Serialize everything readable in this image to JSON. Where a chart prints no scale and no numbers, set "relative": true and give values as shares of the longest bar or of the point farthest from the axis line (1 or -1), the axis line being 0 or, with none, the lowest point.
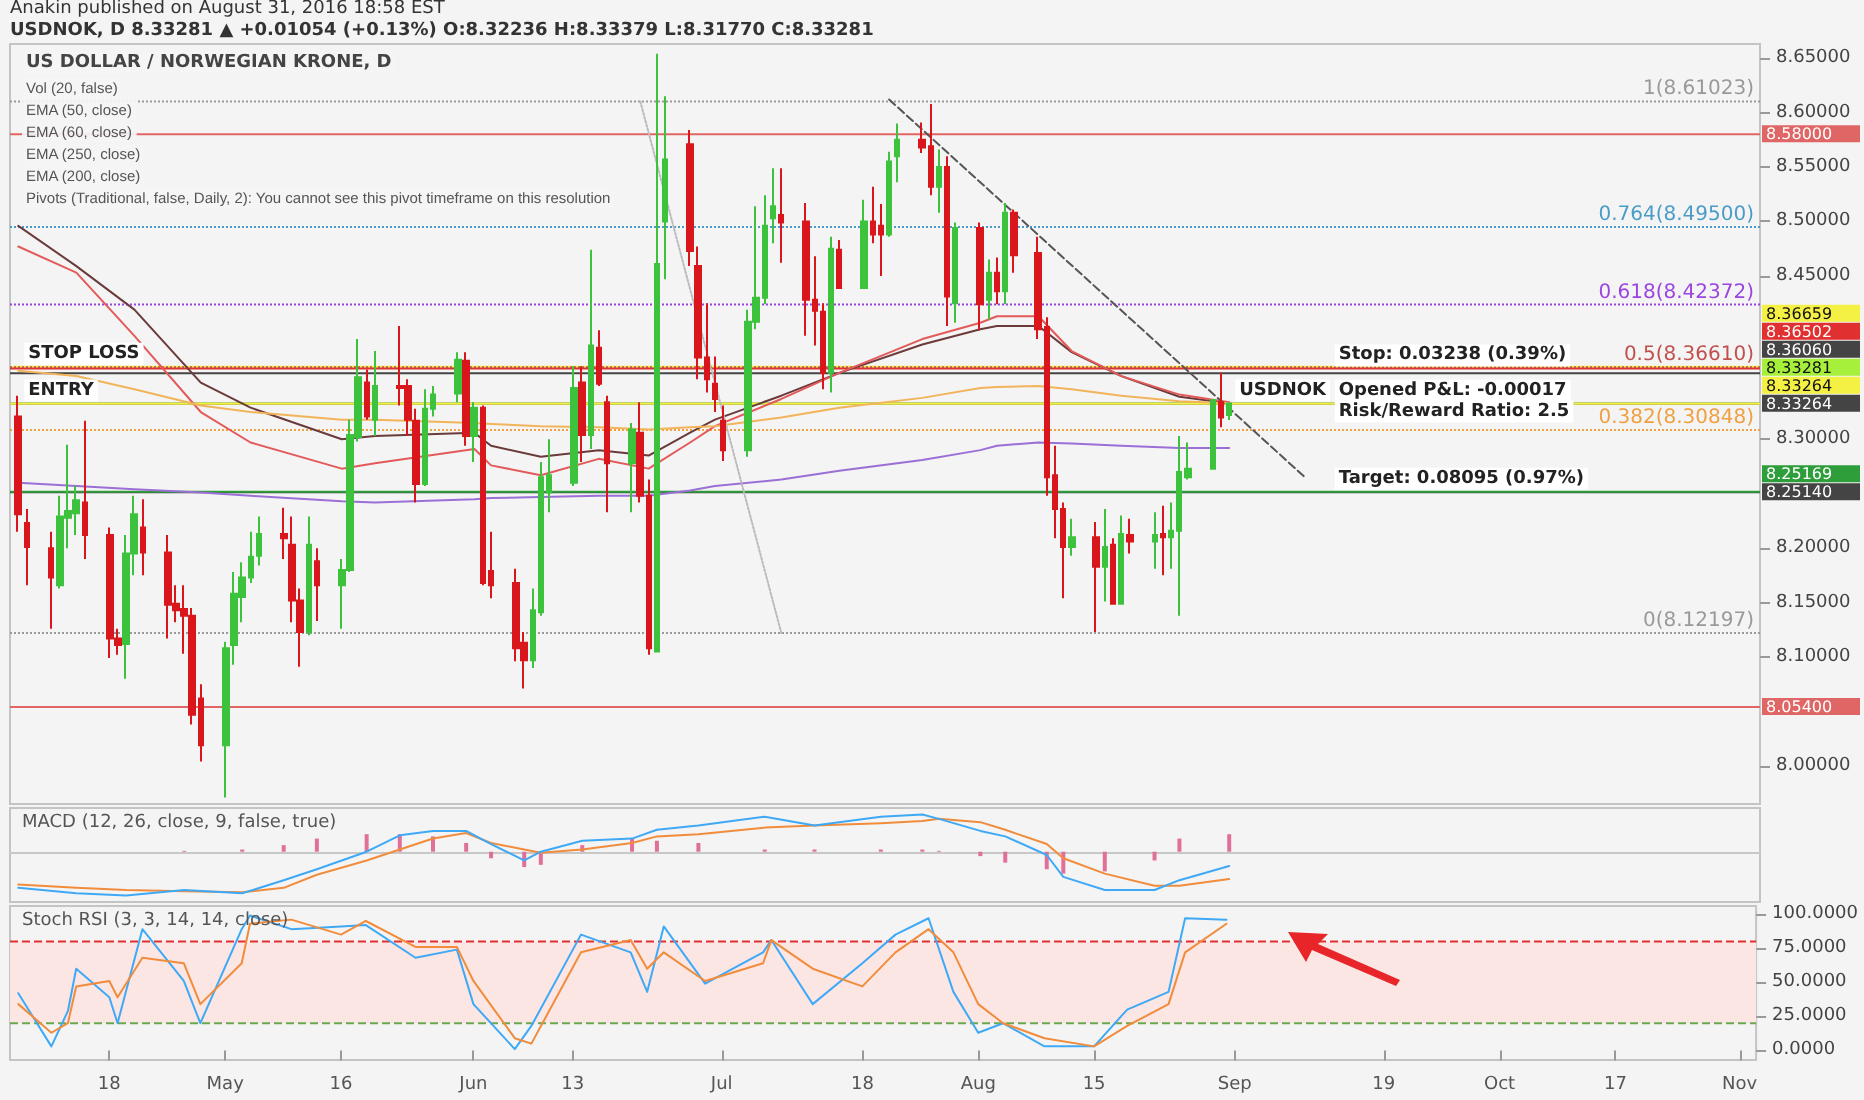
{
  "chart_data": [
    {
      "type": "candlestick",
      "title": "US DOLLAR / NORWEGIAN KRONE, D",
      "subtitle": "USDNOK, D 8.33281 ▲ +0.01054 (+0.13%) O:8.32236 H:8.33379 L:8.31770 C:8.33281",
      "x": [
        "2016-04-07",
        "2016-04-08",
        "2016-04-11",
        "2016-04-12",
        "2016-04-13",
        "2016-04-14",
        "2016-04-15",
        "2016-04-18",
        "2016-04-19",
        "2016-04-20",
        "2016-04-21",
        "2016-04-22",
        "2016-04-25",
        "2016-04-26",
        "2016-04-27",
        "2016-04-28",
        "2016-04-29",
        "2016-05-02",
        "2016-05-03",
        "2016-05-04",
        "2016-05-05",
        "2016-05-06",
        "2016-05-09",
        "2016-05-10",
        "2016-05-11",
        "2016-05-12",
        "2016-05-13",
        "2016-05-16",
        "2016-05-17",
        "2016-05-18",
        "2016-05-19",
        "2016-05-20",
        "2016-05-23",
        "2016-05-24",
        "2016-05-25",
        "2016-05-26",
        "2016-05-27",
        "2016-05-30",
        "2016-05-31",
        "2016-06-01",
        "2016-06-02",
        "2016-06-03",
        "2016-06-06",
        "2016-06-07",
        "2016-06-08",
        "2016-06-09",
        "2016-06-10",
        "2016-06-13",
        "2016-06-14",
        "2016-06-15",
        "2016-06-16",
        "2016-06-17",
        "2016-06-20",
        "2016-06-21",
        "2016-06-22",
        "2016-06-23",
        "2016-06-24",
        "2016-06-27",
        "2016-06-28",
        "2016-06-29",
        "2016-06-30",
        "2016-07-01",
        "2016-07-04",
        "2016-07-05",
        "2016-07-06",
        "2016-07-07",
        "2016-07-08",
        "2016-07-11",
        "2016-07-12",
        "2016-07-13",
        "2016-07-14",
        "2016-07-15",
        "2016-07-18",
        "2016-07-19",
        "2016-07-20",
        "2016-07-21",
        "2016-07-22",
        "2016-07-25",
        "2016-07-26",
        "2016-07-27",
        "2016-07-28",
        "2016-07-29",
        "2016-08-01",
        "2016-08-02",
        "2016-08-03",
        "2016-08-04",
        "2016-08-05",
        "2016-08-08",
        "2016-08-09",
        "2016-08-10",
        "2016-08-11",
        "2016-08-12",
        "2016-08-15",
        "2016-08-16",
        "2016-08-17",
        "2016-08-18",
        "2016-08-19",
        "2016-08-22",
        "2016-08-23",
        "2016-08-24",
        "2016-08-25",
        "2016-08-26",
        "2016-08-29",
        "2016-08-30",
        "2016-08-31"
      ],
      "ohlc": [
        [
          8.321,
          8.34,
          8.215,
          8.231
        ],
        [
          8.223,
          8.236,
          8.166,
          8.201
        ],
        [
          8.2,
          8.215,
          8.126,
          8.173
        ],
        [
          8.166,
          8.248,
          8.163,
          8.229
        ],
        [
          8.228,
          8.295,
          8.2,
          8.234
        ],
        [
          8.232,
          8.257,
          8.212,
          8.244
        ],
        [
          8.242,
          8.317,
          8.19,
          8.212
        ],
        [
          8.212,
          8.219,
          8.099,
          8.117
        ],
        [
          8.117,
          8.126,
          8.102,
          8.111
        ],
        [
          8.112,
          8.212,
          8.08,
          8.195
        ],
        [
          8.195,
          8.248,
          8.175,
          8.231
        ],
        [
          8.219,
          8.245,
          8.175,
          8.196
        ],
        [
          8.196,
          8.212,
          8.117,
          8.148
        ],
        [
          8.149,
          8.166,
          8.132,
          8.143
        ],
        [
          8.144,
          8.166,
          8.103,
          8.138
        ],
        [
          8.138,
          8.145,
          8.038,
          8.047
        ],
        [
          8.062,
          8.075,
          8.004,
          8.019
        ],
        [
          8.019,
          8.114,
          7.971,
          8.108
        ],
        [
          8.111,
          8.178,
          8.093,
          8.158
        ],
        [
          8.155,
          8.187,
          8.132,
          8.173
        ],
        [
          8.173,
          8.215,
          8.168,
          8.192
        ],
        [
          8.193,
          8.229,
          8.184,
          8.213
        ],
        [
          8.213,
          8.237,
          8.19,
          8.209
        ],
        [
          8.203,
          8.229,
          8.132,
          8.152
        ],
        [
          8.152,
          8.163,
          8.091,
          8.123
        ],
        [
          8.123,
          8.229,
          8.12,
          8.203
        ],
        [
          8.188,
          8.2,
          8.133,
          8.166
        ],
        [
          8.166,
          8.19,
          8.126,
          8.18
        ],
        [
          8.18,
          8.318,
          8.178,
          8.304
        ],
        [
          8.302,
          8.392,
          8.298,
          8.357
        ],
        [
          8.352,
          8.364,
          8.318,
          8.321
        ],
        [
          8.318,
          8.381,
          8.303,
          8.349
        ],
        [
          8.349,
          8.404,
          8.331,
          8.347
        ],
        [
          8.349,
          8.355,
          8.303,
          8.318
        ],
        [
          8.317,
          8.328,
          8.242,
          8.259
        ],
        [
          8.259,
          8.346,
          8.257,
          8.328
        ],
        [
          8.328,
          8.349,
          8.321,
          8.341
        ],
        [
          8.342,
          8.38,
          8.334,
          8.373
        ],
        [
          8.372,
          8.38,
          8.294,
          8.303
        ],
        [
          8.303,
          8.334,
          8.279,
          8.329
        ],
        [
          8.329,
          8.331,
          8.166,
          8.168
        ],
        [
          8.179,
          8.215,
          8.154,
          8.166
        ],
        [
          8.168,
          8.181,
          8.096,
          8.108
        ],
        [
          8.113,
          8.123,
          8.071,
          8.097
        ],
        [
          8.097,
          8.163,
          8.09,
          8.143
        ],
        [
          8.141,
          8.279,
          8.138,
          8.265
        ],
        [
          8.251,
          8.3,
          8.233,
          8.267
        ],
        [
          8.26,
          8.367,
          8.257,
          8.347
        ],
        [
          8.352,
          8.367,
          8.279,
          8.304
        ],
        [
          8.304,
          8.474,
          8.291,
          8.386
        ],
        [
          8.384,
          8.4,
          8.349,
          8.351
        ],
        [
          8.334,
          8.34,
          8.233,
          8.278
        ],
        [
          8.278,
          8.315,
          8.233,
          8.309
        ],
        [
          8.306,
          8.334,
          8.242,
          8.248
        ],
        [
          8.248,
          8.263,
          8.102,
          8.108
        ],
        [
          8.105,
          8.654,
          8.105,
          8.461
        ],
        [
          8.5,
          8.615,
          8.447,
          8.557
        ],
        [
          8.571,
          8.584,
          8.459,
          8.473
        ],
        [
          8.459,
          8.477,
          8.355,
          8.375
        ],
        [
          8.375,
          8.425,
          8.343,
          8.355
        ],
        [
          8.351,
          8.376,
          8.325,
          8.337
        ],
        [
          8.317,
          8.331,
          8.28,
          8.29
        ],
        [
          8.29,
          8.419,
          8.284,
          8.408
        ],
        [
          8.408,
          8.514,
          8.401,
          8.43
        ],
        [
          8.43,
          8.524,
          8.424,
          8.496
        ],
        [
          8.503,
          8.549,
          8.48,
          8.514
        ],
        [
          8.506,
          8.549,
          8.462,
          8.499
        ],
        [
          8.5,
          8.517,
          8.395,
          8.428
        ],
        [
          8.428,
          8.468,
          8.386,
          8.418
        ],
        [
          8.417,
          8.425,
          8.346,
          8.361
        ],
        [
          8.361,
          8.486,
          8.343,
          8.475
        ],
        [
          8.474,
          8.483,
          8.438,
          8.439
        ],
        [
          8.439,
          8.52,
          8.438,
          8.5
        ],
        [
          8.5,
          8.532,
          8.48,
          8.488
        ],
        [
          8.496,
          8.516,
          8.45,
          8.488
        ],
        [
          8.488,
          8.564,
          8.486,
          8.555
        ],
        [
          8.56,
          8.59,
          8.536,
          8.575
        ],
        [
          8.575,
          8.591,
          8.563,
          8.568
        ],
        [
          8.569,
          8.608,
          8.524,
          8.532
        ],
        [
          8.532,
          8.566,
          8.508,
          8.55
        ],
        [
          8.55,
          8.56,
          8.404,
          8.431
        ],
        [
          8.425,
          8.499,
          8.407,
          8.494
        ],
        [
          8.494,
          8.499,
          8.4,
          8.424
        ],
        [
          8.428,
          8.465,
          8.41,
          8.453
        ],
        [
          8.453,
          8.467,
          8.424,
          8.436
        ],
        [
          8.436,
          8.517,
          8.424,
          8.508
        ],
        [
          8.508,
          8.511,
          8.453,
          8.469
        ],
        [
          8.471,
          8.486,
          8.392,
          8.401
        ],
        [
          8.403,
          8.412,
          8.248,
          8.265
        ],
        [
          8.267,
          8.294,
          8.209,
          8.236
        ],
        [
          8.236,
          8.242,
          8.154,
          8.201
        ],
        [
          8.201,
          8.227,
          8.193,
          8.21
        ],
        [
          8.21,
          8.224,
          8.123,
          8.183
        ],
        [
          8.183,
          8.236,
          8.151,
          8.201
        ],
        [
          8.203,
          8.209,
          8.148,
          8.149
        ],
        [
          8.149,
          8.23,
          8.148,
          8.213
        ],
        [
          8.212,
          8.227,
          8.195,
          8.206
        ],
        [
          8.206,
          8.233,
          8.181,
          8.212
        ],
        [
          8.213,
          8.239,
          8.175,
          8.21
        ],
        [
          8.21,
          8.242,
          8.181,
          8.216
        ],
        [
          8.216,
          8.303,
          8.138,
          8.27
        ],
        [
          8.265,
          8.297,
          8.263,
          8.273
        ],
        [
          8.273,
          8.337,
          8.273,
          8.336
        ],
        [
          8.334,
          8.361,
          8.311,
          8.32
        ],
        [
          8.32236,
          8.33379,
          8.3177,
          8.33281
        ]
      ],
      "series": [
        {
          "type": "line",
          "color": "#6b3a3a",
          "x": [
            "2016-04-07",
            "2016-04-14",
            "2016-04-21",
            "2016-04-29",
            "2016-05-05",
            "2016-05-16",
            "2016-05-20",
            "2016-06-01",
            "2016-06-03",
            "2016-06-09",
            "2016-06-16",
            "2016-06-22",
            "2016-06-27",
            "2016-06-30",
            "2016-07-08",
            "2016-07-15",
            "2016-07-25",
            "2016-08-01",
            "2016-08-03",
            "2016-08-08",
            "2016-08-12",
            "2016-08-18",
            "2016-08-25",
            "2016-08-31"
          ],
          "values": [
            8.496,
            8.459,
            8.419,
            8.352,
            8.329,
            8.3,
            8.303,
            8.306,
            8.294,
            8.284,
            8.29,
            8.285,
            8.306,
            8.318,
            8.34,
            8.361,
            8.387,
            8.401,
            8.404,
            8.404,
            8.38,
            8.358,
            8.339,
            8.333
          ]
        },
        {
          "type": "line",
          "color": "#e35a5a",
          "x": [
            "2016-04-07",
            "2016-04-14",
            "2016-04-21",
            "2016-04-29",
            "2016-05-05",
            "2016-05-16",
            "2016-05-20",
            "2016-06-01",
            "2016-06-03",
            "2016-06-09",
            "2016-06-16",
            "2016-06-22",
            "2016-06-27",
            "2016-06-30",
            "2016-07-08",
            "2016-07-15",
            "2016-07-25",
            "2016-08-01",
            "2016-08-03",
            "2016-08-08",
            "2016-08-12",
            "2016-08-18",
            "2016-08-25",
            "2016-08-31"
          ],
          "values": [
            8.477,
            8.453,
            8.395,
            8.325,
            8.297,
            8.273,
            8.278,
            8.291,
            8.276,
            8.267,
            8.282,
            8.273,
            8.297,
            8.312,
            8.337,
            8.361,
            8.392,
            8.407,
            8.413,
            8.413,
            8.381,
            8.358,
            8.341,
            8.334
          ]
        },
        {
          "type": "line",
          "color": "#f2b45a",
          "x": [
            "2016-04-07",
            "2016-04-14",
            "2016-04-21",
            "2016-04-29",
            "2016-05-05",
            "2016-05-16",
            "2016-05-20",
            "2016-06-01",
            "2016-06-03",
            "2016-06-09",
            "2016-06-16",
            "2016-06-22",
            "2016-06-27",
            "2016-06-30",
            "2016-07-08",
            "2016-07-15",
            "2016-07-25",
            "2016-08-01",
            "2016-08-03",
            "2016-08-08",
            "2016-08-12",
            "2016-08-18",
            "2016-08-25",
            "2016-08-31"
          ],
          "values": [
            8.363,
            8.358,
            8.346,
            8.331,
            8.325,
            8.318,
            8.318,
            8.315,
            8.314,
            8.312,
            8.311,
            8.309,
            8.311,
            8.312,
            8.32,
            8.329,
            8.338,
            8.347,
            8.348,
            8.349,
            8.346,
            8.34,
            8.335,
            8.333
          ]
        },
        {
          "type": "line",
          "color": "#9b6fd6",
          "x": [
            "2016-04-07",
            "2016-04-14",
            "2016-04-21",
            "2016-04-29",
            "2016-05-05",
            "2016-05-16",
            "2016-05-20",
            "2016-06-01",
            "2016-06-03",
            "2016-06-09",
            "2016-06-16",
            "2016-06-22",
            "2016-06-27",
            "2016-06-30",
            "2016-07-08",
            "2016-07-15",
            "2016-07-25",
            "2016-08-01",
            "2016-08-03",
            "2016-08-08",
            "2016-08-12",
            "2016-08-18",
            "2016-08-25",
            "2016-08-31"
          ],
          "values": [
            8.26,
            8.257,
            8.254,
            8.251,
            8.248,
            8.243,
            8.242,
            8.245,
            8.246,
            8.247,
            8.248,
            8.248,
            8.253,
            8.257,
            8.263,
            8.271,
            8.281,
            8.29,
            8.294,
            8.297,
            8.296,
            8.294,
            8.292,
            8.292
          ]
        },
        {
          "type": "line",
          "color": "#555555",
          "line_style": "dashed",
          "x": [
            "2016-07-21",
            "2016-09-09"
          ],
          "values": [
            8.612,
            8.266
          ]
        },
        {
          "type": "line",
          "color": "#bbbbbb",
          "line_style": "dotted",
          "x": [
            "2016-06-21",
            "2016-07-08"
          ],
          "values": [
            8.61023,
            8.12197
          ]
        }
      ],
      "xlim": [
        "2016-04-06",
        "2016-11-03"
      ],
      "ylim": [
        7.965,
        8.663
      ],
      "yticks": [
        {
          "value": 8.0,
          "label": "8.00000"
        },
        {
          "value": 8.1,
          "label": "8.10000"
        },
        {
          "value": 8.15,
          "label": "8.15000"
        },
        {
          "value": 8.2,
          "label": "8.20000"
        },
        {
          "value": 8.3,
          "label": "8.30000"
        },
        {
          "value": 8.45,
          "label": "8.45000"
        },
        {
          "value": 8.5,
          "label": "8.50000"
        },
        {
          "value": 8.55,
          "label": "8.55000"
        },
        {
          "value": 8.6,
          "label": "8.60000"
        },
        {
          "value": 8.65,
          "label": "8.65000"
        }
      ],
      "tick_labels": "y",
      "ref_lines": [
        {
          "axis": "y",
          "value": 8.58,
          "label": "8.58000",
          "color": "#e06666",
          "line_style": "solid"
        },
        {
          "axis": "y",
          "value": 8.36659,
          "label": "8.36659",
          "color": "#f5f044",
          "line_style": "solid"
        },
        {
          "axis": "y",
          "value": 8.3606,
          "label": "8.36060",
          "color": "#444444",
          "line_style": "solid"
        },
        {
          "axis": "y",
          "value": 8.33281,
          "label": "8.33281",
          "color": "#a6f03c",
          "line_style": "solid"
        },
        {
          "axis": "y",
          "value": 8.2514,
          "label": "8.25140",
          "color": "#444444",
          "line_style": "solid"
        },
        {
          "axis": "y",
          "value": 8.36502,
          "label": "8.36502",
          "color": "#e03030",
          "line_style": "solid"
        },
        {
          "axis": "y",
          "value": 8.33264,
          "label": "8.33264",
          "color": "#444444",
          "line_style": "solid"
        },
        {
          "axis": "y",
          "value": 8.33264,
          "label": "8.33264",
          "color": "#f5f044",
          "line_style": "solid"
        },
        {
          "axis": "y",
          "value": 8.25169,
          "label": "8.25169",
          "color": "#2e9e3a",
          "line_style": "solid"
        },
        {
          "axis": "y",
          "value": 8.054,
          "label": "8.05400",
          "color": "#e06666",
          "line_style": "solid"
        },
        {
          "axis": "y",
          "value": 8.61023,
          "label": "1(8.61023)",
          "color": "#999999",
          "line_style": "dotted"
        },
        {
          "axis": "y",
          "value": 8.495,
          "label": "0.764(8.49500)",
          "color": "#4a9cc8",
          "line_style": "dotted"
        },
        {
          "axis": "y",
          "value": 8.42372,
          "label": "0.618(8.42372)",
          "color": "#9b45e0",
          "line_style": "dotted"
        },
        {
          "axis": "y",
          "value": 8.3661,
          "label": "0.5(8.36610)",
          "color": "#c0504d",
          "line_style": "dotted"
        },
        {
          "axis": "y",
          "value": 8.30848,
          "label": "0.382(8.30848)",
          "color": "#f0a040",
          "line_style": "dotted"
        },
        {
          "axis": "y",
          "value": 8.12197,
          "label": "0(8.12197)",
          "color": "#999999",
          "line_style": "dotted"
        }
      ],
      "annotations": [
        "Anakin published on August 31, 2016 18:58 EST",
        "Vol (20, false)",
        "EMA (50, close)",
        "EMA (60, close)",
        "EMA (250, close)",
        "EMA (200, close)",
        "Pivots (Traditional, false, Daily, 2): You cannot see this pivot timeframe on this resolution",
        {
          "text": "STOP LOSS",
          "x": "2016-04-07",
          "y": 8.36659
        },
        {
          "text": "ENTRY",
          "x": "2016-04-07",
          "y": 8.33281
        },
        {
          "text": "Stop: 0.03238 (0.39%)",
          "x": "2016-09-12",
          "y": 8.36502
        },
        {
          "text": "Opened P&L: -0.00017",
          "x": "2016-09-12",
          "y": 8.33264
        },
        {
          "text": "Risk/Reward Ratio: 2.5",
          "x": "2016-09-12",
          "y": 8.3135
        },
        {
          "text": "Target: 0.08095 (0.97%)",
          "x": "2016-09-12",
          "y": 8.25169
        },
        {
          "text": "USDNOK",
          "x": "2016-08-31",
          "y": 8.33281
        }
      ]
    },
    {
      "type": "line",
      "relative": true,
      "xlim": [
        "2016-04-06",
        "2016-11-03"
      ],
      "tick_labels": false,
      "series": [
        {
          "type": "bar",
          "color": "#e0709a",
          "x": [
            "2016-04-07",
            "2016-04-14",
            "2016-04-20",
            "2016-04-27",
            "2016-05-04",
            "2016-05-09",
            "2016-05-13",
            "2016-05-19",
            "2016-05-23",
            "2016-05-27",
            "2016-05-31",
            "2016-06-03",
            "2016-06-07",
            "2016-06-09",
            "2016-06-14",
            "2016-06-20",
            "2016-06-23",
            "2016-06-28",
            "2016-07-06",
            "2016-07-12",
            "2016-07-20",
            "2016-07-25",
            "2016-07-27",
            "2016-08-01",
            "2016-08-04",
            "2016-08-09",
            "2016-08-11",
            "2016-08-16",
            "2016-08-22",
            "2016-08-25",
            "2016-08-31"
          ],
          "values": [
            0,
            0,
            0,
            0.02,
            0.05,
            0.15,
            0.3,
            0.4,
            0.4,
            0.35,
            0.2,
            -0.15,
            -0.35,
            -0.3,
            0.15,
            0.3,
            0.25,
            0.2,
            0.05,
            0.05,
            0.05,
            0.05,
            0.02,
            -0.1,
            -0.25,
            -0.4,
            -0.5,
            -0.45,
            -0.2,
            0.3,
            0.4
          ]
        },
        {
          "type": "line",
          "color": "#f08c3c",
          "x": [
            "2016-04-07",
            "2016-04-14",
            "2016-04-20",
            "2016-04-27",
            "2016-05-04",
            "2016-05-09",
            "2016-05-13",
            "2016-05-19",
            "2016-05-23",
            "2016-05-27",
            "2016-05-31",
            "2016-06-03",
            "2016-06-07",
            "2016-06-09",
            "2016-06-14",
            "2016-06-20",
            "2016-06-23",
            "2016-06-28",
            "2016-07-06",
            "2016-07-12",
            "2016-07-20",
            "2016-07-25",
            "2016-07-27",
            "2016-08-01",
            "2016-08-04",
            "2016-08-09",
            "2016-08-11",
            "2016-08-16",
            "2016-08-22",
            "2016-08-25",
            "2016-08-31"
          ],
          "values": [
            -0.75,
            -0.825,
            -0.875,
            -0.9,
            -0.925,
            -0.825,
            -0.525,
            -0.2,
            0.05,
            0.3,
            0.425,
            0.2,
            0.05,
            -0.025,
            0.05,
            0.2,
            0.35,
            0.4,
            0.55,
            0.6,
            0.65,
            0.7,
            0.75,
            0.675,
            0.5,
            0.175,
            -0.15,
            -0.5,
            -0.775,
            -0.775,
            -0.625
          ]
        },
        {
          "type": "line",
          "color": "#3fa9f5",
          "x": [
            "2016-04-07",
            "2016-04-14",
            "2016-04-20",
            "2016-04-27",
            "2016-05-04",
            "2016-05-09",
            "2016-05-13",
            "2016-05-19",
            "2016-05-23",
            "2016-05-27",
            "2016-05-31",
            "2016-06-03",
            "2016-06-07",
            "2016-06-09",
            "2016-06-14",
            "2016-06-20",
            "2016-06-23",
            "2016-06-28",
            "2016-07-06",
            "2016-07-12",
            "2016-07-20",
            "2016-07-25",
            "2016-07-27",
            "2016-08-01",
            "2016-08-04",
            "2016-08-09",
            "2016-08-11",
            "2016-08-16",
            "2016-08-22",
            "2016-08-25",
            "2016-08-31"
          ],
          "values": [
            -0.825,
            -0.95,
            -1,
            -0.875,
            -0.95,
            -0.65,
            -0.4,
            0,
            0.375,
            0.475,
            0.475,
            0.175,
            -0.2,
            0,
            0.25,
            0.3,
            0.5,
            0.6,
            0.8,
            0.6,
            0.8,
            0.85,
            0.75,
            0.475,
            0.35,
            -0.075,
            -0.575,
            -0.875,
            -0.875,
            -0.65,
            -0.325
          ]
        }
      ],
      "annotations": [
        "MACD (12, 26, close, 9, false, true)"
      ]
    },
    {
      "type": "line",
      "xlim": [
        "2016-04-06",
        "2016-11-03"
      ],
      "ylim": [
        -7,
        106
      ],
      "xticks": [
        {
          "value": "2016-04-18",
          "label": "18"
        },
        {
          "value": "2016-05-02",
          "label": "May"
        },
        {
          "value": "2016-05-16",
          "label": "16"
        },
        {
          "value": "2016-06-01",
          "label": "Jun"
        },
        {
          "value": "2016-06-13",
          "label": "13"
        },
        {
          "value": "2016-07-01",
          "label": "Jul"
        },
        {
          "value": "2016-07-18",
          "label": "18"
        },
        {
          "value": "2016-08-01",
          "label": "Aug"
        },
        {
          "value": "2016-08-15",
          "label": "15"
        },
        {
          "value": "2016-09-01",
          "label": "Sep"
        },
        {
          "value": "2016-09-19",
          "label": "19"
        },
        {
          "value": "2016-10-03",
          "label": "Oct"
        },
        {
          "value": "2016-10-17",
          "label": "17"
        },
        {
          "value": "2016-11-01",
          "label": "Nov"
        }
      ],
      "yticks": [
        {
          "value": 0,
          "label": "0.0000"
        },
        {
          "value": 25,
          "label": "25.0000"
        },
        {
          "value": 50,
          "label": "50.0000"
        },
        {
          "value": 75,
          "label": "75.0000"
        },
        {
          "value": 100,
          "label": "100.0000"
        }
      ],
      "series": [
        {
          "color": "#3fa9f5",
          "x": [
            "2016-04-07",
            "2016-04-11",
            "2016-04-13",
            "2016-04-14",
            "2016-04-18",
            "2016-04-19",
            "2016-04-22",
            "2016-04-27",
            "2016-04-29",
            "2016-05-04",
            "2016-05-05",
            "2016-05-10",
            "2016-05-16",
            "2016-05-19",
            "2016-05-25",
            "2016-05-30",
            "2016-06-01",
            "2016-06-06",
            "2016-06-08",
            "2016-06-14",
            "2016-06-20",
            "2016-06-22",
            "2016-06-24",
            "2016-06-29",
            "2016-07-06",
            "2016-07-07",
            "2016-07-12",
            "2016-07-18",
            "2016-07-22",
            "2016-07-26",
            "2016-07-29",
            "2016-08-01",
            "2016-08-04",
            "2016-08-09",
            "2016-08-15",
            "2016-08-19",
            "2016-08-24",
            "2016-08-26",
            "2016-08-31"
          ],
          "values": [
            42,
            3,
            29,
            60,
            39,
            20,
            89,
            51,
            20,
            89,
            99,
            89,
            91,
            92,
            68,
            74,
            34,
            1,
            18,
            85,
            72,
            43,
            91,
            49,
            72,
            81,
            34,
            64,
            85,
            97,
            43,
            13,
            20,
            3,
            3,
            30,
            43,
            97,
            96
          ]
        },
        {
          "color": "#f08c3c",
          "x": [
            "2016-04-07",
            "2016-04-11",
            "2016-04-13",
            "2016-04-14",
            "2016-04-18",
            "2016-04-19",
            "2016-04-22",
            "2016-04-27",
            "2016-04-29",
            "2016-05-04",
            "2016-05-05",
            "2016-05-10",
            "2016-05-16",
            "2016-05-19",
            "2016-05-25",
            "2016-05-30",
            "2016-06-01",
            "2016-06-06",
            "2016-06-08",
            "2016-06-14",
            "2016-06-20",
            "2016-06-22",
            "2016-06-24",
            "2016-06-29",
            "2016-07-06",
            "2016-07-07",
            "2016-07-12",
            "2016-07-18",
            "2016-07-22",
            "2016-07-26",
            "2016-07-29",
            "2016-08-01",
            "2016-08-04",
            "2016-08-09",
            "2016-08-15",
            "2016-08-19",
            "2016-08-24",
            "2016-08-26",
            "2016-08-31"
          ],
          "values": [
            34,
            13,
            20,
            47,
            51,
            39,
            68,
            64,
            34,
            64,
            93,
            96,
            85,
            95,
            76,
            76,
            51,
            9,
            5,
            72,
            81,
            60,
            72,
            51,
            64,
            81,
            60,
            47,
            72,
            89,
            72,
            34,
            20,
            9,
            3,
            18,
            34,
            72,
            93
          ]
        }
      ],
      "ref_lines": [
        {
          "axis": "y",
          "value": 80,
          "color": "#e03030",
          "line_style": "dashed"
        },
        {
          "axis": "y",
          "value": 20,
          "color": "#6aa84f",
          "line_style": "dashed"
        }
      ],
      "bands": [
        {
          "axis": "y",
          "from": 20,
          "to": 80,
          "color": "#fbe6e4"
        }
      ],
      "annotations": [
        "Stoch RSI (3, 3, 14, 14, close)"
      ]
    }
  ]
}
